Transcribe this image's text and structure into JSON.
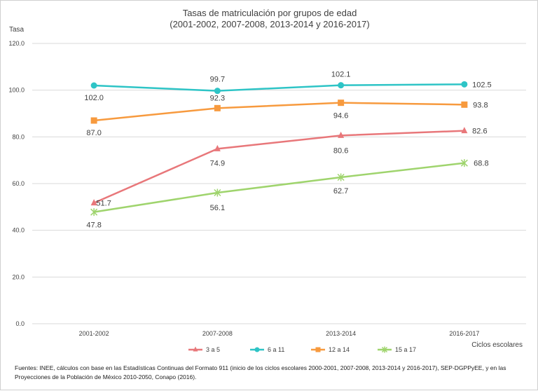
{
  "chart_data": {
    "type": "line",
    "title": "Tasas de matriculación por grupos de edad",
    "subtitle": "(2001-2002, 2007-2008, 2013-2014 y 2016-2017)",
    "ylabel": "Tasa",
    "xlabel": "Ciclos escolares",
    "categories": [
      "2001-2002",
      "2007-2008",
      "2013-2014",
      "2016-2017"
    ],
    "ylim": [
      0,
      120
    ],
    "yticks": [
      "0.0",
      "20.0",
      "40.0",
      "60.0",
      "80.0",
      "100.0",
      "120.0"
    ],
    "grid": true,
    "legend_position": "bottom",
    "series": [
      {
        "name": "3 a 5",
        "values": [
          51.7,
          74.9,
          80.6,
          82.6
        ],
        "labels": [
          "51.7",
          "74.9",
          "80.6",
          "82.6"
        ],
        "color": "#e8777a",
        "marker": "triangle"
      },
      {
        "name": "6 a 11",
        "values": [
          102.0,
          99.7,
          102.1,
          102.5
        ],
        "labels": [
          "102.0",
          "99.7",
          "102.1",
          "102.5"
        ],
        "color": "#2ec4c6",
        "marker": "circle"
      },
      {
        "name": "12 a 14",
        "values": [
          87.0,
          92.3,
          94.6,
          93.8
        ],
        "labels": [
          "87.0",
          "92.3",
          "94.6",
          "93.8"
        ],
        "color": "#f79a3e",
        "marker": "square"
      },
      {
        "name": "15 a 17",
        "values": [
          47.8,
          56.1,
          62.7,
          68.8
        ],
        "labels": [
          "47.8",
          "56.1",
          "62.7",
          "68.8"
        ],
        "color": "#9fd46d",
        "marker": "star"
      }
    ],
    "source": "Fuentes: INEE, cálculos con base en las Estadísticas Continuas del Formato 911 (inicio de los ciclos escolares 2000-2001, 2007-2008, 2013-2014 y 2016-2017), SEP-DGPPyEE, y en las Proyecciones de la Población de México 2010-2050, Conapo (2016)."
  }
}
